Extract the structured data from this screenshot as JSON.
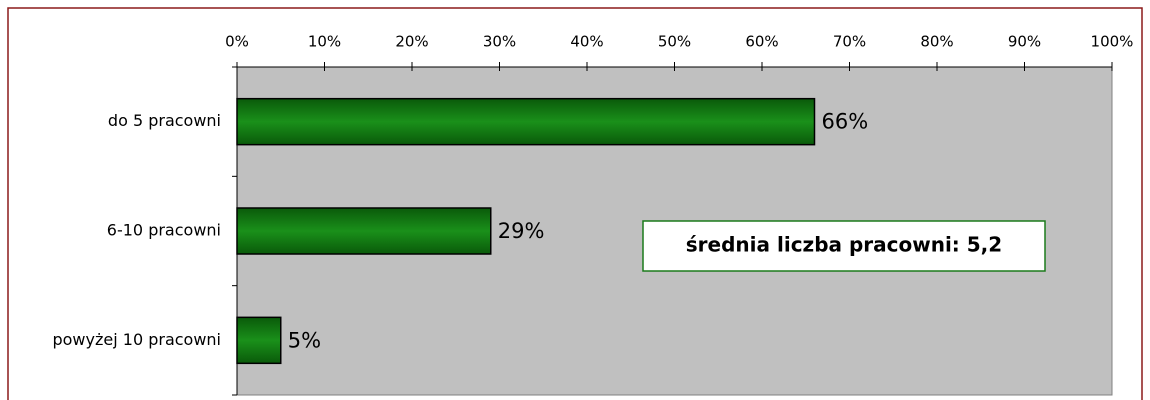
{
  "chart_data": {
    "type": "bar",
    "orientation": "horizontal",
    "categories": [
      "do 5 pracowni",
      "6-10 pracowni",
      "powyżej 10 pracowni"
    ],
    "values": [
      66,
      29,
      5
    ],
    "value_labels": [
      "66%",
      "29%",
      "5%"
    ],
    "color": "#0a7a0a",
    "xlim": [
      0,
      100
    ],
    "xticks": [
      {
        "value": 0,
        "label": "0%"
      },
      {
        "value": 10,
        "label": "10%"
      },
      {
        "value": 20,
        "label": "20%"
      },
      {
        "value": 30,
        "label": "30%"
      },
      {
        "value": 40,
        "label": "40%"
      },
      {
        "value": 50,
        "label": "50%"
      },
      {
        "value": 60,
        "label": "60%"
      },
      {
        "value": 70,
        "label": "70%"
      },
      {
        "value": 80,
        "label": "80%"
      },
      {
        "value": 90,
        "label": "90%"
      },
      {
        "value": 100,
        "label": "100%"
      }
    ],
    "annotation": "średnia liczba pracowni: 5,2"
  }
}
